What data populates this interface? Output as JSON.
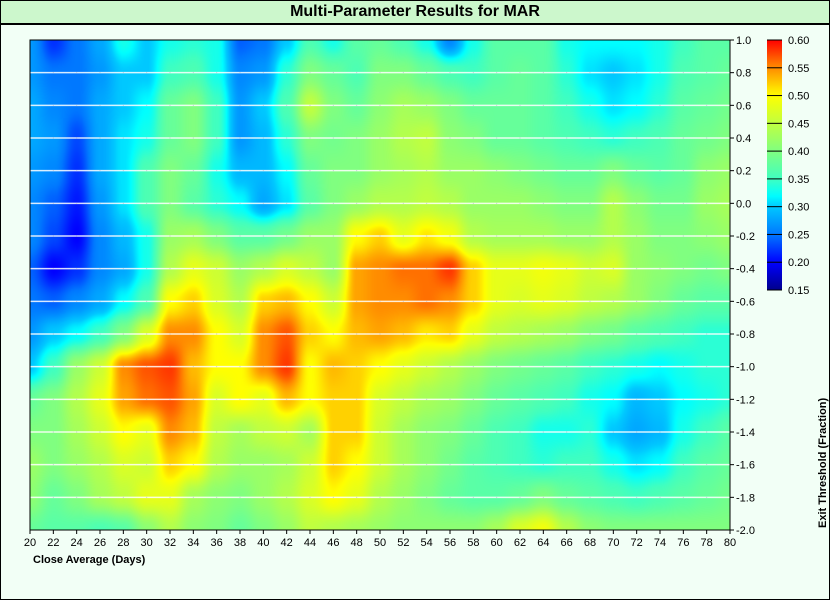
{
  "chart_data": {
    "type": "heatmap",
    "title": "Multi-Parameter Results for MAR",
    "xlabel": "Close Average (Days)",
    "ylabel": "Exit Threshold (Fraction)",
    "xlim": [
      20,
      80
    ],
    "ylim": [
      -2.0,
      1.0
    ],
    "x_ticks": [
      "20",
      "22",
      "24",
      "26",
      "28",
      "30",
      "32",
      "34",
      "36",
      "38",
      "40",
      "42",
      "44",
      "46",
      "48",
      "50",
      "52",
      "54",
      "56",
      "58",
      "60",
      "62",
      "64",
      "66",
      "68",
      "70",
      "72",
      "74",
      "76",
      "78",
      "80"
    ],
    "y_ticks": [
      "1.0",
      "0.8",
      "0.6",
      "0.4",
      "0.2",
      "0.0",
      "-0.2",
      "-0.4",
      "-0.6",
      "-0.8",
      "-1.0",
      "-1.2",
      "-1.4",
      "-1.6",
      "-1.8",
      "-2.0"
    ],
    "x": [
      20,
      22,
      24,
      26,
      28,
      30,
      32,
      34,
      36,
      38,
      40,
      42,
      44,
      46,
      48,
      50,
      52,
      54,
      56,
      58,
      60,
      62,
      64,
      66,
      68,
      70,
      72,
      74,
      76,
      78,
      80
    ],
    "y": [
      1.0,
      0.8,
      0.6,
      0.4,
      0.2,
      0.0,
      -0.2,
      -0.4,
      -0.6,
      -0.8,
      -1.0,
      -1.2,
      -1.4,
      -1.6,
      -1.8,
      -2.0
    ],
    "z": [
      [
        0.27,
        0.22,
        0.25,
        0.28,
        0.33,
        0.3,
        0.33,
        0.34,
        0.33,
        0.24,
        0.25,
        0.3,
        0.36,
        0.33,
        0.37,
        0.38,
        0.36,
        0.33,
        0.26,
        0.33,
        0.37,
        0.37,
        0.37,
        0.33,
        0.32,
        0.32,
        0.32,
        0.33,
        0.35,
        0.37,
        0.37
      ],
      [
        0.27,
        0.25,
        0.25,
        0.27,
        0.3,
        0.3,
        0.35,
        0.36,
        0.33,
        0.26,
        0.27,
        0.34,
        0.4,
        0.38,
        0.36,
        0.4,
        0.4,
        0.38,
        0.36,
        0.35,
        0.37,
        0.38,
        0.37,
        0.34,
        0.31,
        0.3,
        0.31,
        0.33,
        0.36,
        0.37,
        0.38
      ],
      [
        0.28,
        0.26,
        0.25,
        0.28,
        0.3,
        0.32,
        0.38,
        0.4,
        0.35,
        0.27,
        0.3,
        0.36,
        0.45,
        0.4,
        0.38,
        0.41,
        0.43,
        0.42,
        0.4,
        0.38,
        0.38,
        0.38,
        0.37,
        0.35,
        0.33,
        0.31,
        0.32,
        0.34,
        0.37,
        0.38,
        0.39
      ],
      [
        0.28,
        0.27,
        0.23,
        0.28,
        0.31,
        0.33,
        0.38,
        0.4,
        0.35,
        0.27,
        0.29,
        0.34,
        0.4,
        0.39,
        0.4,
        0.42,
        0.44,
        0.45,
        0.41,
        0.4,
        0.38,
        0.38,
        0.37,
        0.36,
        0.35,
        0.34,
        0.35,
        0.36,
        0.38,
        0.39,
        0.4
      ],
      [
        0.27,
        0.26,
        0.22,
        0.28,
        0.31,
        0.36,
        0.4,
        0.38,
        0.33,
        0.29,
        0.29,
        0.32,
        0.38,
        0.4,
        0.4,
        0.42,
        0.43,
        0.44,
        0.42,
        0.42,
        0.41,
        0.4,
        0.39,
        0.38,
        0.38,
        0.4,
        0.38,
        0.37,
        0.38,
        0.41,
        0.42
      ],
      [
        0.26,
        0.24,
        0.21,
        0.27,
        0.31,
        0.36,
        0.4,
        0.37,
        0.34,
        0.32,
        0.28,
        0.31,
        0.37,
        0.4,
        0.42,
        0.44,
        0.44,
        0.45,
        0.44,
        0.42,
        0.42,
        0.42,
        0.41,
        0.4,
        0.4,
        0.44,
        0.41,
        0.39,
        0.39,
        0.42,
        0.43
      ],
      [
        0.26,
        0.23,
        0.2,
        0.26,
        0.29,
        0.33,
        0.42,
        0.43,
        0.4,
        0.37,
        0.37,
        0.39,
        0.42,
        0.42,
        0.5,
        0.52,
        0.48,
        0.51,
        0.49,
        0.44,
        0.43,
        0.43,
        0.43,
        0.42,
        0.42,
        0.44,
        0.42,
        0.4,
        0.4,
        0.41,
        0.42
      ],
      [
        0.24,
        0.2,
        0.22,
        0.26,
        0.28,
        0.33,
        0.44,
        0.48,
        0.46,
        0.42,
        0.44,
        0.47,
        0.45,
        0.42,
        0.54,
        0.55,
        0.56,
        0.56,
        0.58,
        0.52,
        0.48,
        0.48,
        0.49,
        0.48,
        0.46,
        0.47,
        0.42,
        0.41,
        0.4,
        0.39,
        0.4
      ],
      [
        0.25,
        0.24,
        0.26,
        0.28,
        0.32,
        0.36,
        0.5,
        0.52,
        0.47,
        0.44,
        0.52,
        0.53,
        0.5,
        0.46,
        0.54,
        0.55,
        0.55,
        0.56,
        0.55,
        0.52,
        0.48,
        0.47,
        0.48,
        0.47,
        0.45,
        0.44,
        0.42,
        0.4,
        0.38,
        0.37,
        0.37
      ],
      [
        0.27,
        0.3,
        0.32,
        0.35,
        0.4,
        0.47,
        0.55,
        0.55,
        0.5,
        0.47,
        0.55,
        0.57,
        0.52,
        0.5,
        0.53,
        0.54,
        0.53,
        0.51,
        0.52,
        0.48,
        0.45,
        0.44,
        0.43,
        0.42,
        0.4,
        0.39,
        0.37,
        0.36,
        0.35,
        0.34,
        0.34
      ],
      [
        0.3,
        0.35,
        0.42,
        0.46,
        0.55,
        0.57,
        0.58,
        0.53,
        0.5,
        0.5,
        0.55,
        0.58,
        0.5,
        0.53,
        0.52,
        0.5,
        0.48,
        0.46,
        0.44,
        0.42,
        0.4,
        0.39,
        0.38,
        0.37,
        0.35,
        0.34,
        0.33,
        0.32,
        0.33,
        0.34,
        0.34
      ],
      [
        0.38,
        0.4,
        0.44,
        0.48,
        0.54,
        0.56,
        0.57,
        0.54,
        0.47,
        0.5,
        0.48,
        0.53,
        0.5,
        0.52,
        0.52,
        0.47,
        0.45,
        0.43,
        0.42,
        0.4,
        0.38,
        0.37,
        0.36,
        0.35,
        0.33,
        0.32,
        0.29,
        0.3,
        0.32,
        0.33,
        0.34
      ],
      [
        0.4,
        0.4,
        0.43,
        0.46,
        0.5,
        0.48,
        0.55,
        0.53,
        0.45,
        0.43,
        0.45,
        0.46,
        0.43,
        0.52,
        0.52,
        0.46,
        0.43,
        0.41,
        0.4,
        0.38,
        0.36,
        0.35,
        0.33,
        0.33,
        0.34,
        0.3,
        0.28,
        0.29,
        0.33,
        0.35,
        0.37
      ],
      [
        0.42,
        0.4,
        0.42,
        0.44,
        0.47,
        0.46,
        0.52,
        0.5,
        0.44,
        0.42,
        0.42,
        0.43,
        0.46,
        0.52,
        0.5,
        0.46,
        0.43,
        0.41,
        0.39,
        0.37,
        0.36,
        0.35,
        0.34,
        0.35,
        0.35,
        0.33,
        0.31,
        0.32,
        0.35,
        0.37,
        0.38
      ],
      [
        0.41,
        0.38,
        0.4,
        0.43,
        0.45,
        0.48,
        0.48,
        0.43,
        0.41,
        0.4,
        0.42,
        0.44,
        0.47,
        0.5,
        0.48,
        0.44,
        0.42,
        0.4,
        0.38,
        0.37,
        0.37,
        0.38,
        0.4,
        0.38,
        0.37,
        0.36,
        0.35,
        0.36,
        0.37,
        0.38,
        0.39
      ],
      [
        0.38,
        0.37,
        0.37,
        0.36,
        0.37,
        0.41,
        0.44,
        0.41,
        0.4,
        0.38,
        0.4,
        0.42,
        0.45,
        0.44,
        0.43,
        0.42,
        0.41,
        0.41,
        0.41,
        0.41,
        0.43,
        0.47,
        0.49,
        0.44,
        0.41,
        0.4,
        0.4,
        0.4,
        0.4,
        0.4,
        0.4
      ]
    ],
    "colorbar": {
      "range": [
        0.15,
        0.6
      ],
      "ticks": [
        "0.60",
        "0.55",
        "0.50",
        "0.45",
        "0.40",
        "0.35",
        "0.30",
        "0.25",
        "0.20",
        "0.15"
      ],
      "colors": {
        "0.15": "#00008c",
        "0.20": "#0000ff",
        "0.25": "#0078ff",
        "0.30": "#00c8ff",
        "0.32": "#00ffff",
        "0.35": "#40ffc0",
        "0.40": "#80ff80",
        "0.45": "#c0ff40",
        "0.50": "#ffff00",
        "0.55": "#ff8c00",
        "0.60": "#ff0000"
      }
    },
    "grid": true,
    "legend": "right"
  }
}
